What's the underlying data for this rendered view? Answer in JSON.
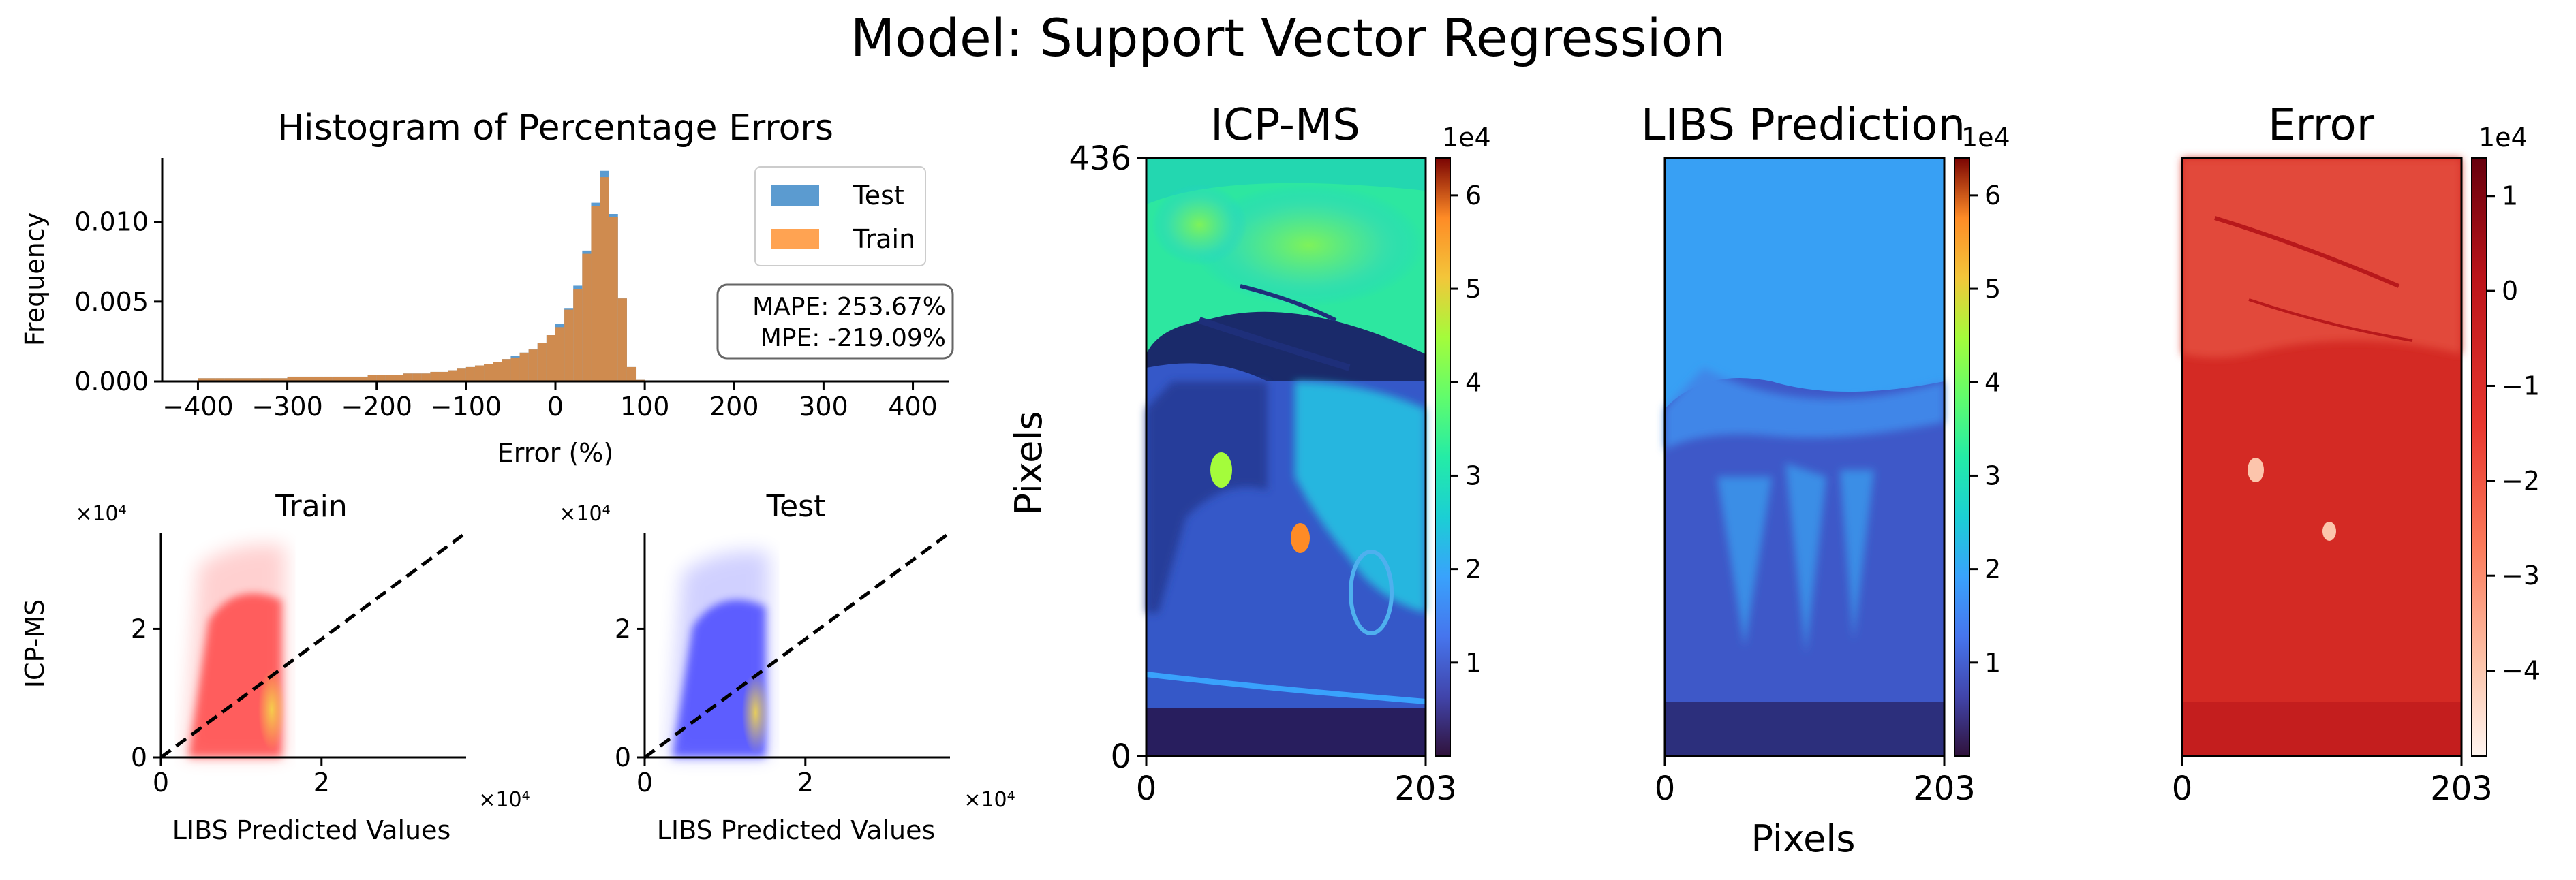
{
  "suptitle": "Model: Support Vector Regression",
  "colors": {
    "test": "#5b9bd0",
    "train": "#ffa352",
    "overlap": "#cf8b4f",
    "train_scatter": "#ff0000",
    "test_scatter": "#0000ff",
    "density_core": "#e8d870",
    "identity_line": "#000000"
  },
  "chart_data": [
    {
      "id": "histogram",
      "type": "bar",
      "title": "Histogram of Percentage Errors",
      "xlabel": "Error (%)",
      "ylabel": "Frequency",
      "xlim": [
        -440,
        440
      ],
      "ylim": [
        0,
        0.014
      ],
      "xticks": [
        -400,
        -300,
        -200,
        -100,
        0,
        100,
        200,
        300,
        400
      ],
      "xtick_labels": [
        "−400",
        "−300",
        "−200",
        "−100",
        "0",
        "100",
        "200",
        "300",
        "400"
      ],
      "yticks": [
        0,
        0.005,
        0.01
      ],
      "ytick_labels": [
        "0.000",
        "0.005",
        "0.010"
      ],
      "bin_start": -400,
      "bin_width": 10,
      "series": [
        {
          "name": "Test",
          "values": [
            0.0002,
            0.0002,
            0.0002,
            0.0002,
            0.0002,
            0.0002,
            0.0002,
            0.0002,
            0.0002,
            0.0002,
            0.0003,
            0.0003,
            0.0003,
            0.0003,
            0.0003,
            0.0003,
            0.0003,
            0.0003,
            0.0003,
            0.0004,
            0.0004,
            0.0004,
            0.0004,
            0.0005,
            0.0005,
            0.0005,
            0.0006,
            0.0006,
            0.0007,
            0.0008,
            0.0009,
            0.001,
            0.0011,
            0.0012,
            0.0014,
            0.0016,
            0.0018,
            0.002,
            0.0024,
            0.0029,
            0.0036,
            0.0046,
            0.006,
            0.0082,
            0.0112,
            0.0132,
            0.0105,
            0.0052,
            0.0009,
            0.0001
          ]
        },
        {
          "name": "Train",
          "values": [
            0.0002,
            0.0002,
            0.0002,
            0.0002,
            0.0002,
            0.0002,
            0.0002,
            0.0002,
            0.0002,
            0.0002,
            0.0003,
            0.0003,
            0.0003,
            0.0003,
            0.0003,
            0.0003,
            0.0003,
            0.0003,
            0.0003,
            0.0004,
            0.0004,
            0.0004,
            0.0004,
            0.0005,
            0.0005,
            0.0005,
            0.0006,
            0.0006,
            0.0007,
            0.0008,
            0.0009,
            0.001,
            0.0011,
            0.0012,
            0.0014,
            0.0015,
            0.0018,
            0.002,
            0.0024,
            0.0029,
            0.0034,
            0.0045,
            0.0058,
            0.008,
            0.011,
            0.0128,
            0.0103,
            0.0052,
            0.0009,
            0.0001
          ]
        }
      ],
      "legend": "top-right",
      "annotation": [
        "MAPE: 253.67%",
        "MPE: -219.09%"
      ]
    },
    {
      "id": "scatter-train",
      "type": "scatter",
      "title": "Train",
      "xlabel": "LIBS Predicted Values",
      "ylabel": "ICP-MS",
      "x_scale_label": "×10⁴",
      "y_scale_label": "×10⁴",
      "xlim": [
        0,
        3.8
      ],
      "ylim": [
        0,
        3.5
      ],
      "xticks": [
        0,
        2
      ],
      "yticks": [
        0,
        2
      ],
      "x_range_of_points": [
        0.3,
        1.55
      ],
      "y_range_of_points": [
        0,
        3.4
      ],
      "identity_line": true
    },
    {
      "id": "scatter-test",
      "type": "scatter",
      "title": "Test",
      "xlabel": "LIBS Predicted Values",
      "ylabel": "",
      "x_scale_label": "×10⁴",
      "y_scale_label": "×10⁴",
      "xlim": [
        0,
        3.8
      ],
      "ylim": [
        0,
        3.5
      ],
      "xticks": [
        0,
        2
      ],
      "yticks": [
        0,
        2
      ],
      "x_range_of_points": [
        0.3,
        1.55
      ],
      "y_range_of_points": [
        0,
        3.3
      ],
      "identity_line": true
    },
    {
      "id": "map-icpms",
      "type": "heatmap",
      "title": "ICP-MS",
      "ylabel": "Pixels",
      "xlim": [
        0,
        203
      ],
      "ylim": [
        0,
        436
      ],
      "xticks": [
        0,
        203
      ],
      "yticks": [
        0,
        436
      ],
      "colormap": "turbo",
      "colorbar_range": [
        0,
        6.4
      ],
      "colorbar_ticks": [
        "1",
        "2",
        "3",
        "4",
        "5",
        "6"
      ],
      "colorbar_scale": "1e4"
    },
    {
      "id": "map-libs",
      "type": "heatmap",
      "title": "LIBS Prediction",
      "xlabel": "Pixels",
      "xlim": [
        0,
        203
      ],
      "xticks": [
        0,
        203
      ],
      "colormap": "turbo",
      "colorbar_range": [
        0,
        6.4
      ],
      "colorbar_ticks": [
        "1",
        "2",
        "3",
        "4",
        "5",
        "6"
      ],
      "colorbar_scale": "1e4"
    },
    {
      "id": "map-error",
      "type": "heatmap",
      "title": "Error",
      "xlim": [
        0,
        203
      ],
      "xticks": [
        0,
        203
      ],
      "colormap": "reds_r",
      "colorbar_range": [
        -4.9,
        1.4
      ],
      "colorbar_ticks": [
        "−4",
        "−3",
        "−2",
        "−1",
        "0",
        "1"
      ],
      "colorbar_scale": "1e4"
    }
  ]
}
